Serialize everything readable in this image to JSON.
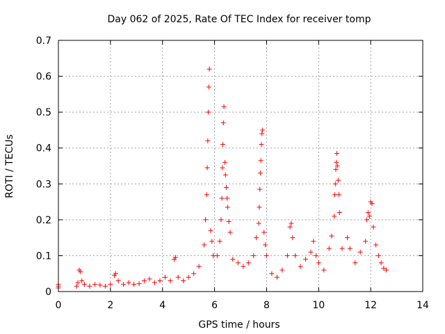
{
  "chart_data": {
    "type": "scatter",
    "title": "Day 062 of 2025, Rate Of TEC Index for receiver tomp",
    "xlabel": "GPS time / hours",
    "ylabel": "ROTI / TECUs",
    "xlim": [
      0,
      14
    ],
    "ylim": [
      0,
      0.7
    ],
    "xticks": [
      "0",
      "2",
      "4",
      "6",
      "8",
      "10",
      "12",
      "14"
    ],
    "yticks": [
      "0",
      "0.1",
      "0.2",
      "0.3",
      "0.4",
      "0.5",
      "0.6",
      "0.7"
    ],
    "grid": true,
    "marker": "+",
    "color": "#ff0000",
    "series": [
      {
        "points": [
          [
            0.0,
            0.02
          ],
          [
            0.0,
            0.015
          ],
          [
            0.0,
            0.01
          ],
          [
            0.7,
            0.015
          ],
          [
            0.75,
            0.025
          ],
          [
            0.8,
            0.06
          ],
          [
            0.85,
            0.055
          ],
          [
            0.9,
            0.03
          ],
          [
            1.0,
            0.02
          ],
          [
            1.2,
            0.015
          ],
          [
            1.4,
            0.02
          ],
          [
            1.6,
            0.018
          ],
          [
            1.8,
            0.015
          ],
          [
            2.0,
            0.02
          ],
          [
            2.15,
            0.045
          ],
          [
            2.2,
            0.05
          ],
          [
            2.3,
            0.03
          ],
          [
            2.5,
            0.02
          ],
          [
            2.7,
            0.025
          ],
          [
            2.9,
            0.02
          ],
          [
            3.1,
            0.022
          ],
          [
            3.3,
            0.03
          ],
          [
            3.5,
            0.035
          ],
          [
            3.7,
            0.025
          ],
          [
            3.9,
            0.03
          ],
          [
            4.1,
            0.04
          ],
          [
            4.3,
            0.03
          ],
          [
            4.45,
            0.09
          ],
          [
            4.5,
            0.095
          ],
          [
            4.6,
            0.04
          ],
          [
            4.8,
            0.03
          ],
          [
            5.0,
            0.04
          ],
          [
            5.2,
            0.05
          ],
          [
            5.4,
            0.07
          ],
          [
            5.6,
            0.13
          ],
          [
            5.65,
            0.2
          ],
          [
            5.7,
            0.27
          ],
          [
            5.72,
            0.345
          ],
          [
            5.74,
            0.42
          ],
          [
            5.76,
            0.5
          ],
          [
            5.78,
            0.57
          ],
          [
            5.8,
            0.62
          ],
          [
            5.85,
            0.17
          ],
          [
            5.9,
            0.14
          ],
          [
            5.95,
            0.1
          ],
          [
            6.1,
            0.1
          ],
          [
            6.2,
            0.14
          ],
          [
            6.25,
            0.2
          ],
          [
            6.28,
            0.26
          ],
          [
            6.3,
            0.345
          ],
          [
            6.32,
            0.41
          ],
          [
            6.34,
            0.47
          ],
          [
            6.36,
            0.515
          ],
          [
            6.4,
            0.36
          ],
          [
            6.42,
            0.325
          ],
          [
            6.45,
            0.29
          ],
          [
            6.48,
            0.26
          ],
          [
            6.5,
            0.235
          ],
          [
            6.55,
            0.195
          ],
          [
            6.6,
            0.165
          ],
          [
            6.7,
            0.09
          ],
          [
            6.9,
            0.08
          ],
          [
            7.1,
            0.07
          ],
          [
            7.3,
            0.08
          ],
          [
            7.5,
            0.1
          ],
          [
            7.6,
            0.15
          ],
          [
            7.7,
            0.19
          ],
          [
            7.72,
            0.235
          ],
          [
            7.74,
            0.285
          ],
          [
            7.76,
            0.33
          ],
          [
            7.78,
            0.365
          ],
          [
            7.8,
            0.41
          ],
          [
            7.82,
            0.44
          ],
          [
            7.84,
            0.45
          ],
          [
            7.9,
            0.165
          ],
          [
            7.95,
            0.13
          ],
          [
            8.0,
            0.1
          ],
          [
            8.2,
            0.05
          ],
          [
            8.4,
            0.04
          ],
          [
            8.6,
            0.06
          ],
          [
            8.8,
            0.1
          ],
          [
            8.9,
            0.18
          ],
          [
            8.95,
            0.19
          ],
          [
            9.0,
            0.15
          ],
          [
            9.1,
            0.1
          ],
          [
            9.3,
            0.07
          ],
          [
            9.5,
            0.09
          ],
          [
            9.7,
            0.11
          ],
          [
            9.8,
            0.14
          ],
          [
            9.9,
            0.1
          ],
          [
            10.0,
            0.08
          ],
          [
            10.2,
            0.06
          ],
          [
            10.4,
            0.12
          ],
          [
            10.5,
            0.155
          ],
          [
            10.6,
            0.21
          ],
          [
            10.62,
            0.27
          ],
          [
            10.64,
            0.3
          ],
          [
            10.66,
            0.34
          ],
          [
            10.68,
            0.36
          ],
          [
            10.7,
            0.385
          ],
          [
            10.72,
            0.35
          ],
          [
            10.75,
            0.31
          ],
          [
            10.78,
            0.27
          ],
          [
            10.8,
            0.22
          ],
          [
            10.9,
            0.12
          ],
          [
            11.1,
            0.15
          ],
          [
            11.2,
            0.12
          ],
          [
            11.4,
            0.08
          ],
          [
            11.6,
            0.11
          ],
          [
            11.8,
            0.14
          ],
          [
            11.85,
            0.2
          ],
          [
            11.9,
            0.22
          ],
          [
            11.95,
            0.21
          ],
          [
            12.0,
            0.25
          ],
          [
            12.05,
            0.245
          ],
          [
            12.1,
            0.18
          ],
          [
            12.2,
            0.13
          ],
          [
            12.3,
            0.1
          ],
          [
            12.4,
            0.08
          ],
          [
            12.5,
            0.065
          ],
          [
            12.6,
            0.06
          ]
        ]
      }
    ]
  }
}
